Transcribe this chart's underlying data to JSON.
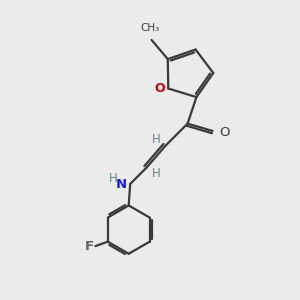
{
  "bg_color": "#ebebeb",
  "bond_color": "#3a3a3a",
  "o_ring_color": "#cc0000",
  "o_carbonyl_color": "#3a3a3a",
  "n_color": "#1a1aff",
  "f_color": "#606060",
  "h_color": "#5a8a8a",
  "line_width": 1.6,
  "figsize": [
    3.0,
    3.0
  ],
  "dpi": 100,
  "xlim": [
    0,
    10
  ],
  "ylim": [
    0,
    10
  ]
}
